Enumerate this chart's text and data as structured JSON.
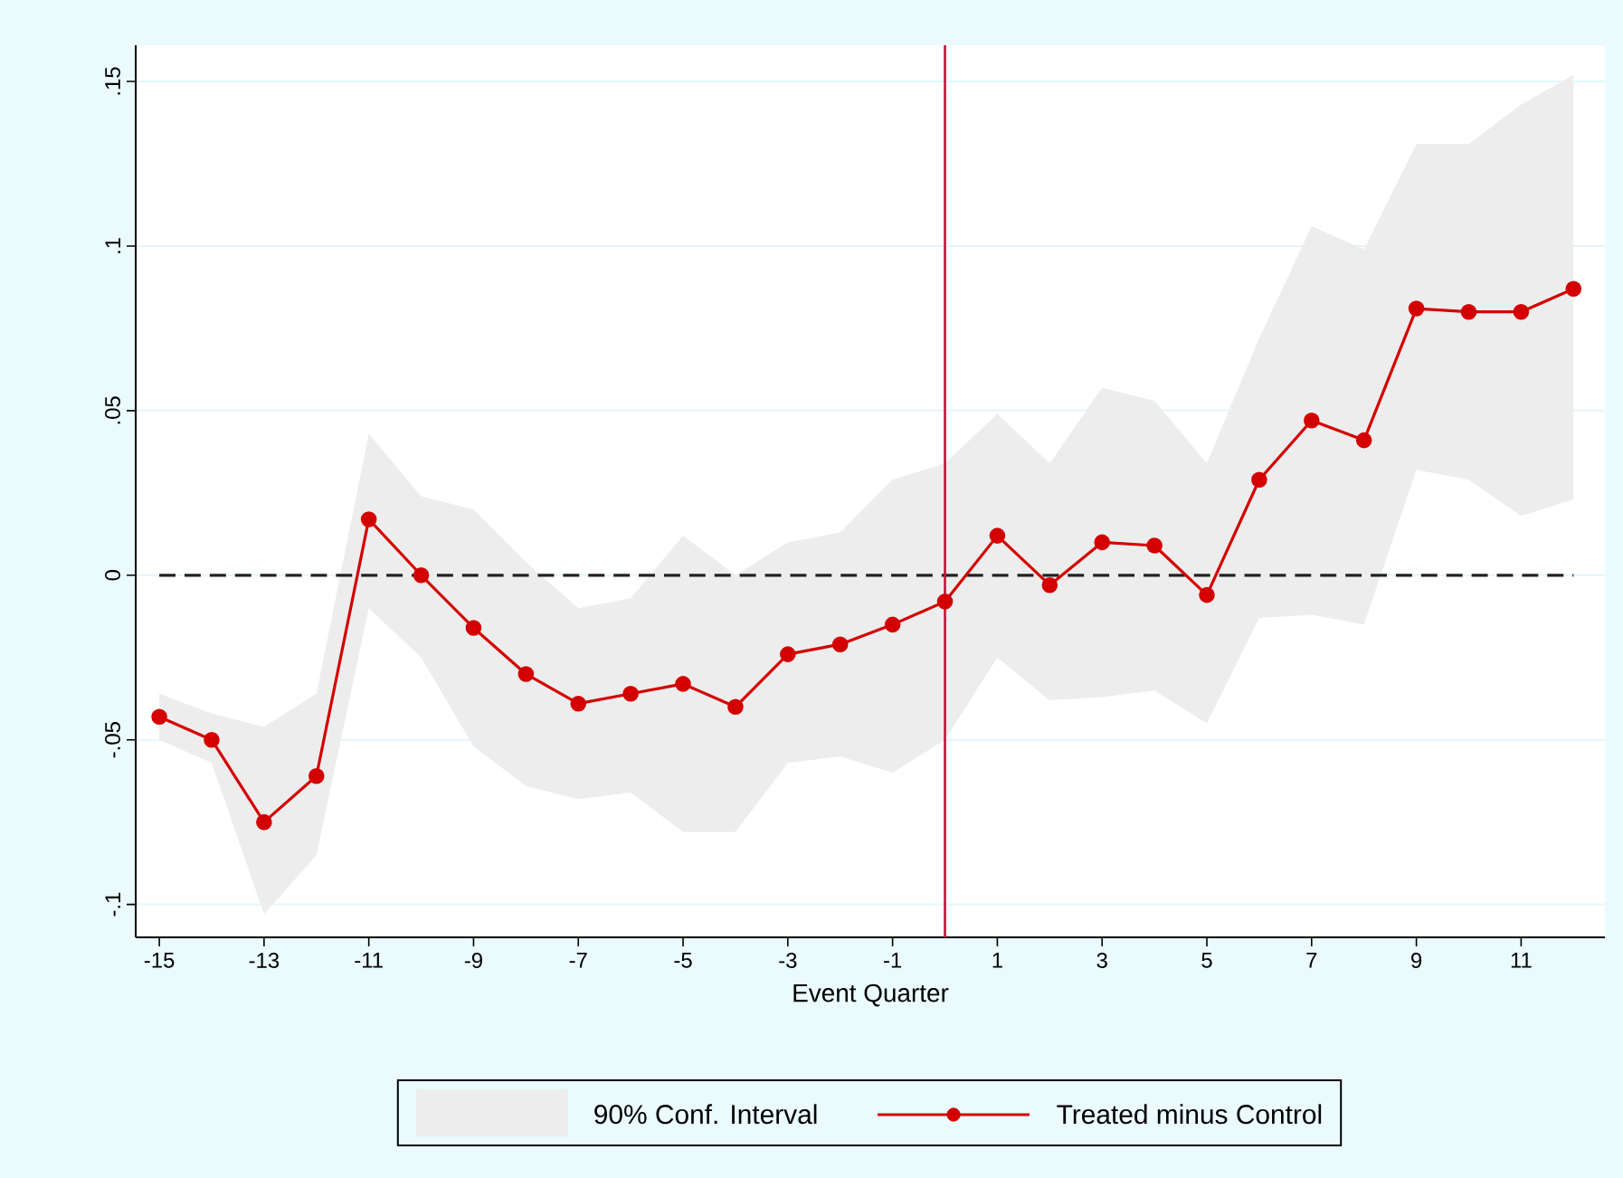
{
  "chart_data": {
    "type": "line",
    "xlabel": "Event Quarter",
    "x": [
      -15,
      -14,
      -13,
      -12,
      -11,
      -10,
      -9,
      -8,
      -7,
      -6,
      -5,
      -4,
      -3,
      -2,
      -1,
      0,
      1,
      2,
      3,
      4,
      5,
      6,
      7,
      8,
      9,
      10,
      11,
      12
    ],
    "series": [
      {
        "name": "Treated minus Control",
        "color": "#d40000",
        "marker": "circle",
        "line_style": "solid",
        "values": [
          -0.043,
          -0.05,
          -0.075,
          -0.061,
          0.017,
          0.0,
          -0.016,
          -0.03,
          -0.039,
          -0.036,
          -0.033,
          -0.04,
          -0.024,
          -0.021,
          -0.015,
          -0.008,
          0.012,
          -0.003,
          0.01,
          0.009,
          -0.006,
          0.029,
          0.047,
          0.041,
          0.081,
          0.08,
          0.08,
          0.087
        ],
        "lower": [
          -0.05,
          -0.057,
          -0.103,
          -0.085,
          -0.01,
          -0.025,
          -0.052,
          -0.064,
          -0.068,
          -0.066,
          -0.078,
          -0.078,
          -0.057,
          -0.055,
          -0.06,
          -0.05,
          -0.025,
          -0.038,
          -0.037,
          -0.035,
          -0.045,
          -0.013,
          -0.012,
          -0.015,
          0.032,
          0.029,
          0.018,
          0.023
        ],
        "upper": [
          -0.036,
          -0.042,
          -0.046,
          -0.036,
          0.043,
          0.024,
          0.02,
          0.004,
          -0.01,
          -0.007,
          0.012,
          0.0,
          0.01,
          0.013,
          0.029,
          0.034,
          0.049,
          0.034,
          0.057,
          0.053,
          0.034,
          0.072,
          0.106,
          0.099,
          0.131,
          0.131,
          0.143,
          0.152
        ]
      }
    ],
    "annotations": [
      "90% Conf. Interval"
    ],
    "xlim": [
      -15.45,
      12.6
    ],
    "xticks": [
      -15,
      -13,
      -11,
      -9,
      -7,
      -5,
      -3,
      -1,
      1,
      3,
      5,
      7,
      9,
      11
    ],
    "ylim": [
      -0.11,
      0.161
    ],
    "yticks": [
      {
        "value": -0.1,
        "label": "-.1"
      },
      {
        "value": -0.05,
        "label": "-.05"
      },
      0,
      {
        "value": 0.05,
        "label": ".05"
      },
      {
        "value": 0.1,
        "label": ".1"
      },
      {
        "value": 0.15,
        "label": ".15"
      }
    ],
    "ref_lines": [
      {
        "axis": "y",
        "value": 0,
        "color": "#222222",
        "line_style": "dashed"
      },
      {
        "axis": "x",
        "value": 0,
        "color": "#c8103a",
        "line_style": "solid"
      }
    ],
    "grid": "y",
    "legend": "bottom"
  }
}
